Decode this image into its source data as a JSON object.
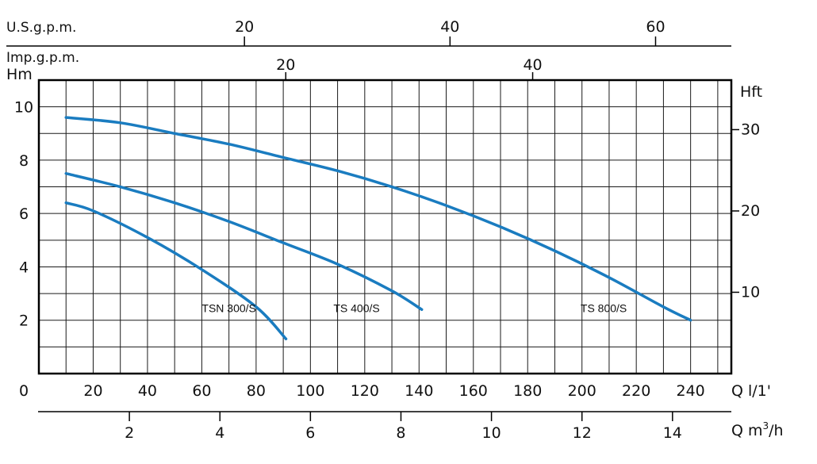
{
  "chart_data": {
    "type": "line",
    "title": "",
    "colors": {
      "curve": "#1a7cc0",
      "grid": "#1a1a1a",
      "frame": "#000000"
    },
    "axes": {
      "q_lmin": {
        "label": "Q l/1'",
        "range": [
          0,
          255
        ],
        "ticks": [
          20,
          40,
          60,
          80,
          100,
          120,
          140,
          160,
          180,
          200,
          220,
          240
        ],
        "origin_label": "0"
      },
      "q_m3h": {
        "label_prefix": "Q m",
        "label_sup": "3",
        "label_suffix": "/h",
        "ticks": [
          2,
          4,
          6,
          8,
          10,
          12,
          14
        ]
      },
      "us_gpm": {
        "label": "U.S.g.p.m.",
        "ticks": [
          20,
          40,
          60
        ]
      },
      "imp_gpm": {
        "label": "Imp.g.p.m.",
        "ticks": [
          20,
          40
        ]
      },
      "head_m": {
        "label": "Hm",
        "range": [
          0,
          11
        ],
        "ticks": [
          2,
          4,
          6,
          8,
          10
        ]
      },
      "head_ft": {
        "label": "Hft",
        "ticks": [
          10,
          20,
          30
        ]
      }
    },
    "series": [
      {
        "name": "TSN 300/S",
        "x": [
          10,
          20,
          40,
          60,
          80,
          91
        ],
        "y": [
          6.4,
          6.1,
          5.1,
          3.9,
          2.5,
          1.3
        ]
      },
      {
        "name": "TS 400/S",
        "x": [
          10,
          30,
          50,
          70,
          90,
          110,
          130,
          141
        ],
        "y": [
          7.5,
          7.0,
          6.4,
          5.7,
          4.9,
          4.1,
          3.1,
          2.4
        ]
      },
      {
        "name": "TS 800/S",
        "x": [
          10,
          30,
          50,
          70,
          90,
          110,
          130,
          150,
          170,
          190,
          210,
          230,
          240
        ],
        "y": [
          9.6,
          9.4,
          9.0,
          8.6,
          8.1,
          7.6,
          7.0,
          6.3,
          5.5,
          4.6,
          3.6,
          2.5,
          2.0
        ]
      }
    ]
  }
}
